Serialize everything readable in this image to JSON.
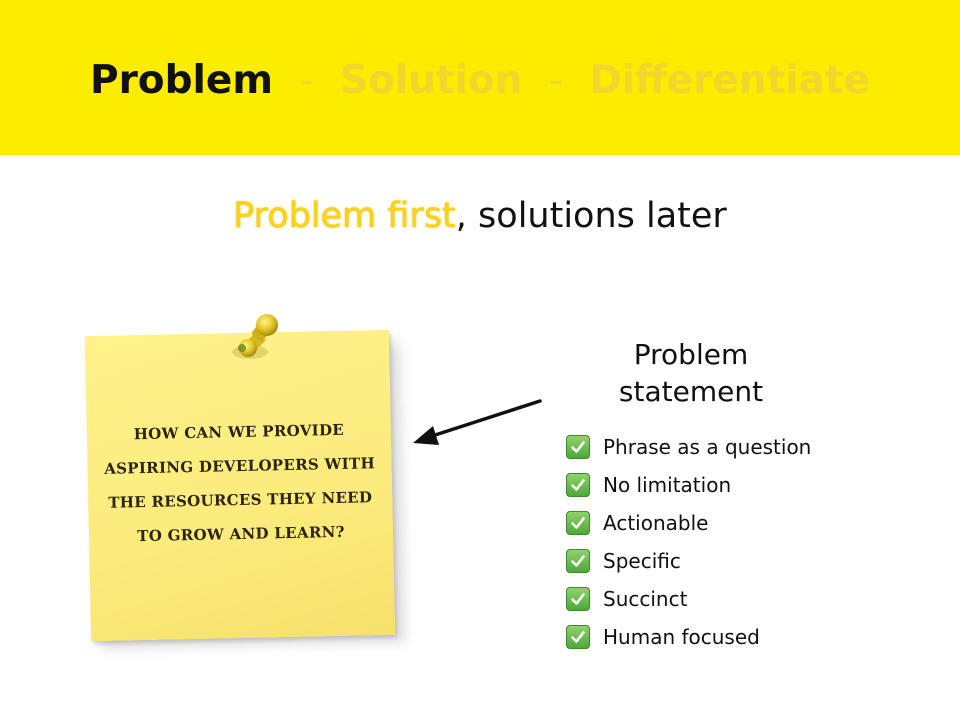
{
  "banner": {
    "active": "Problem",
    "separator": "-",
    "steps": [
      "Solution",
      "Differentiate"
    ]
  },
  "subtitle": {
    "highlight": "Problem first",
    "rest": ", solutions later"
  },
  "note": {
    "lines": [
      "HOW CAN WE PROVIDE",
      "ASPIRING DEVELOPERS WITH",
      "THE RESOURCES THEY NEED",
      "TO GROW AND LEARN?"
    ]
  },
  "problem_statement": {
    "title_line1": "Problem",
    "title_line2": "statement",
    "items": [
      "Phrase as a question",
      "No limitation",
      "Actionable",
      "Specific",
      "Succinct",
      "Human focused"
    ]
  },
  "colors": {
    "banner": "#fcec00",
    "highlight": "#f9d21a",
    "note": "#fbeb7c",
    "check": "#4fa83a"
  }
}
